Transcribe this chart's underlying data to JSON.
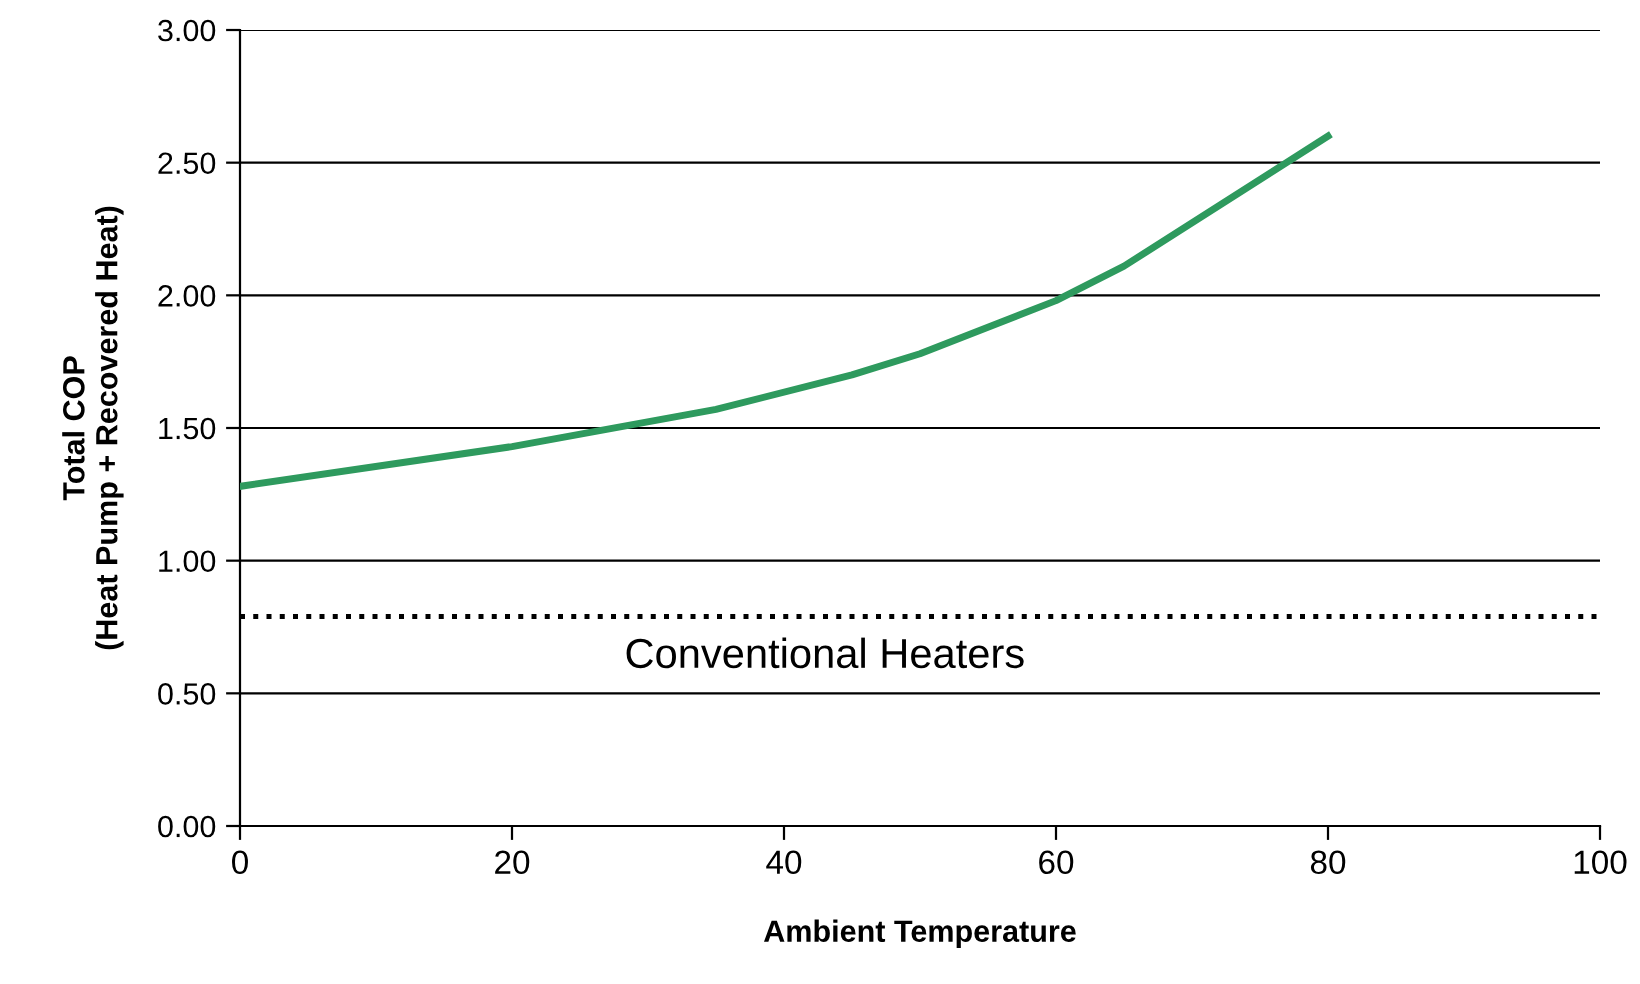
{
  "chart_data": {
    "type": "line",
    "xlabel": "Ambient Temperature",
    "ylabel": "Total COP\n(Heat Pump + Recovered Heat)",
    "x": [
      0,
      20,
      35,
      45,
      50,
      60,
      65,
      80
    ],
    "series": [
      {
        "color": "#2e9a5e",
        "values": [
          1.28,
          1.43,
          1.57,
          1.7,
          1.78,
          1.98,
          2.11,
          2.6
        ]
      }
    ],
    "xlim": [
      0,
      100
    ],
    "xticks": [
      0,
      20,
      40,
      60,
      80,
      100
    ],
    "ylim": [
      0,
      3
    ],
    "yticks": [
      {
        "value": 0,
        "label": "0.00"
      },
      {
        "value": 0.5,
        "label": "0.50"
      },
      {
        "value": 1,
        "label": "1.00"
      },
      {
        "value": 1.5,
        "label": "1.50"
      },
      {
        "value": 2,
        "label": "2.00"
      },
      {
        "value": 2.5,
        "label": "2.50"
      },
      {
        "value": 3,
        "label": "3.00"
      }
    ],
    "ref_lines": [
      {
        "axis": "y",
        "value": 0.79,
        "label": "Conventional Heaters",
        "color": "#000000",
        "line_style": "dotted"
      }
    ],
    "grid": "y",
    "legend": false,
    "marker": "none",
    "line_style": "solid"
  }
}
